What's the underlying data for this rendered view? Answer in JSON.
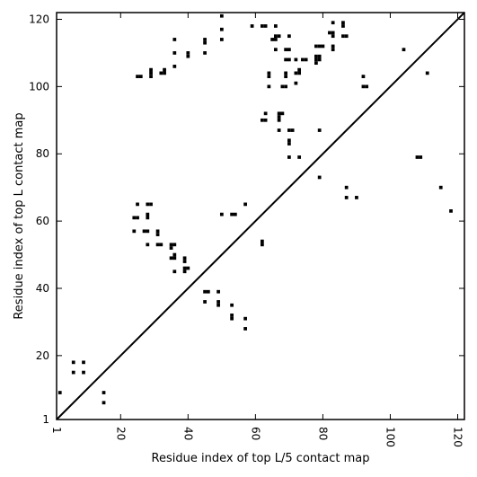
{
  "chart_data": {
    "type": "scatter",
    "xlabel": "Residue index of top L/5 contact map",
    "ylabel": "Residue index of top L contact map",
    "xlim": [
      1,
      122
    ],
    "ylim": [
      1,
      122
    ],
    "x_ticks": [
      1,
      20,
      40,
      60,
      80,
      100,
      120
    ],
    "y_ticks": [
      1,
      20,
      40,
      60,
      80,
      100,
      120
    ],
    "x_tick_labels": [
      "1",
      "20",
      "40",
      "60",
      "80",
      "100",
      "120"
    ],
    "y_tick_labels": [
      "1",
      "20",
      "40",
      "60",
      "80",
      "100",
      "120"
    ],
    "grid": false,
    "marker_color": "#000000",
    "diagonal_line": {
      "from": [
        1,
        1
      ],
      "to": [
        122,
        122
      ]
    },
    "upper_points": [
      [
        50,
        121
      ],
      [
        59,
        118
      ],
      [
        62,
        118
      ],
      [
        63,
        118
      ],
      [
        66,
        118
      ],
      [
        50,
        117
      ],
      [
        83,
        119
      ],
      [
        86,
        118
      ],
      [
        86,
        119
      ],
      [
        36,
        114
      ],
      [
        45,
        114
      ],
      [
        45,
        113
      ],
      [
        50,
        114
      ],
      [
        66,
        115
      ],
      [
        67,
        115
      ],
      [
        70,
        115
      ],
      [
        82,
        116
      ],
      [
        83,
        116
      ],
      [
        83,
        115
      ],
      [
        86,
        115
      ],
      [
        87,
        115
      ],
      [
        65,
        114
      ],
      [
        66,
        114
      ],
      [
        79,
        112
      ],
      [
        80,
        112
      ],
      [
        78,
        112
      ],
      [
        83,
        112
      ],
      [
        83,
        111
      ],
      [
        104,
        111
      ],
      [
        66,
        111
      ],
      [
        69,
        111
      ],
      [
        70,
        111
      ],
      [
        36,
        110
      ],
      [
        40,
        110
      ],
      [
        45,
        110
      ],
      [
        40,
        109
      ],
      [
        72,
        108
      ],
      [
        74,
        108
      ],
      [
        75,
        108
      ],
      [
        78,
        109
      ],
      [
        79,
        109
      ],
      [
        78,
        108
      ],
      [
        79,
        108
      ],
      [
        69,
        108
      ],
      [
        70,
        108
      ],
      [
        78,
        107
      ],
      [
        36,
        106
      ],
      [
        29,
        105
      ],
      [
        33,
        105
      ],
      [
        29,
        104
      ],
      [
        32,
        104
      ],
      [
        33,
        104
      ],
      [
        72,
        104
      ],
      [
        73,
        105
      ],
      [
        73,
        104
      ],
      [
        111,
        104
      ],
      [
        64,
        104
      ],
      [
        64,
        103
      ],
      [
        25,
        103
      ],
      [
        26,
        103
      ],
      [
        29,
        103
      ],
      [
        69,
        104
      ],
      [
        69,
        103
      ],
      [
        92,
        103
      ],
      [
        64,
        100
      ],
      [
        68,
        100
      ],
      [
        69,
        100
      ],
      [
        72,
        101
      ],
      [
        92,
        100
      ],
      [
        93,
        100
      ],
      [
        63,
        92
      ],
      [
        67,
        92
      ],
      [
        68,
        92
      ],
      [
        62,
        90
      ],
      [
        63,
        90
      ],
      [
        67,
        90
      ],
      [
        67,
        91
      ],
      [
        67,
        87
      ],
      [
        70,
        87
      ],
      [
        71,
        87
      ],
      [
        79,
        87
      ],
      [
        70,
        84
      ],
      [
        70,
        83
      ],
      [
        70,
        79
      ],
      [
        73,
        79
      ],
      [
        108,
        79
      ],
      [
        109,
        79
      ],
      [
        79,
        73
      ],
      [
        87,
        70
      ],
      [
        115,
        70
      ],
      [
        87,
        67
      ],
      [
        90,
        67
      ],
      [
        57,
        65
      ],
      [
        118,
        63
      ]
    ],
    "lower_points": [
      [
        25,
        65
      ],
      [
        28,
        65
      ],
      [
        29,
        65
      ],
      [
        28,
        62
      ],
      [
        28,
        61
      ],
      [
        24,
        61
      ],
      [
        25,
        61
      ],
      [
        50,
        62
      ],
      [
        53,
        62
      ],
      [
        54,
        62
      ],
      [
        24,
        57
      ],
      [
        27,
        57
      ],
      [
        28,
        57
      ],
      [
        31,
        57
      ],
      [
        31,
        56
      ],
      [
        31,
        53
      ],
      [
        32,
        53
      ],
      [
        28,
        53
      ],
      [
        35,
        53
      ],
      [
        36,
        53
      ],
      [
        35,
        52
      ],
      [
        62,
        54
      ],
      [
        62,
        53
      ],
      [
        35,
        49
      ],
      [
        36,
        49
      ],
      [
        36,
        50
      ],
      [
        39,
        49
      ],
      [
        39,
        48
      ],
      [
        39,
        46
      ],
      [
        40,
        46
      ],
      [
        39,
        45
      ],
      [
        36,
        45
      ],
      [
        45,
        39
      ],
      [
        46,
        39
      ],
      [
        49,
        39
      ],
      [
        45,
        36
      ],
      [
        49,
        36
      ],
      [
        49,
        35
      ],
      [
        53,
        35
      ],
      [
        53,
        32
      ],
      [
        53,
        31
      ],
      [
        57,
        31
      ],
      [
        57,
        28
      ],
      [
        6,
        18
      ],
      [
        9,
        18
      ],
      [
        6,
        15
      ],
      [
        9,
        15
      ],
      [
        15,
        9
      ],
      [
        2,
        9
      ],
      [
        15,
        6
      ]
    ]
  }
}
